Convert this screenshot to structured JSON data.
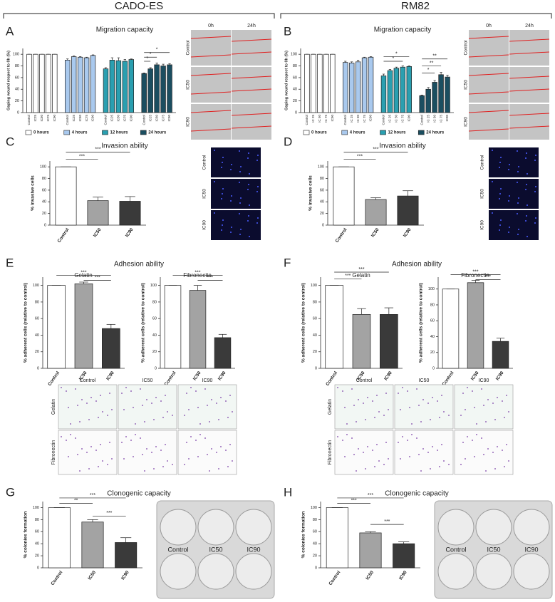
{
  "figure": {
    "groups": [
      "CADO-ES",
      "RM82"
    ],
    "panels": [
      "A",
      "B",
      "C",
      "D",
      "E",
      "F",
      "G",
      "H"
    ],
    "adhesion_title": "Adhesion ability",
    "wound": {
      "times": [
        "0h",
        "24h"
      ],
      "rows": [
        "Control",
        "IC50",
        "IC90"
      ]
    },
    "invasion_rows": [
      "Control",
      "IC50",
      "IC90"
    ],
    "adhesion": {
      "cols": [
        "Control",
        "IC50",
        "IC90"
      ],
      "rows": [
        "Gelatin",
        "Fibronectin"
      ]
    },
    "plate_labels": [
      "Control",
      "IC50",
      "IC90"
    ]
  },
  "chart_data": [
    {
      "type": "grouped_bar",
      "title": "Migration capacity",
      "ylabel": "Gaping wound respect to 0h (%)",
      "categories": [
        "Control",
        "IC25",
        "IC50",
        "IC75",
        "IC90"
      ],
      "series": [
        {
          "name": "0 hours",
          "color": "#ffffff",
          "values": [
            100,
            100,
            100,
            100,
            100
          ],
          "errors": [
            0,
            0,
            0,
            0,
            0
          ]
        },
        {
          "name": "4 hours",
          "color": "#a9c9ee",
          "values": [
            90,
            96,
            95,
            94,
            98
          ],
          "errors": [
            2,
            1,
            1,
            1,
            1
          ]
        },
        {
          "name": "12 hours",
          "color": "#2a9fb0",
          "values": [
            75,
            90,
            89,
            88,
            91
          ],
          "errors": [
            2,
            4,
            5,
            3,
            1
          ]
        },
        {
          "name": "24 hours",
          "color": "#1b4e60",
          "values": [
            67,
            75,
            82,
            80,
            82
          ],
          "errors": [
            1,
            2,
            3,
            3,
            2
          ]
        }
      ],
      "ylim": [
        0,
        110
      ],
      "yticks": [
        0,
        20,
        40,
        60,
        80,
        100
      ],
      "annotations": [
        "*",
        "*",
        "*"
      ]
    },
    {
      "type": "grouped_bar",
      "title": "Migration capacity",
      "ylabel": "Gaping wound respect to 0h (%)",
      "categories": [
        "Control",
        "IC 25",
        "IC 50",
        "IC 75",
        "IC90"
      ],
      "series": [
        {
          "name": "0 hours",
          "color": "#ffffff",
          "values": [
            100,
            100,
            100,
            100,
            100
          ],
          "errors": [
            0,
            0,
            0,
            0,
            0
          ]
        },
        {
          "name": "4 hours",
          "color": "#a9c9ee",
          "values": [
            86,
            85,
            87,
            94,
            95
          ],
          "errors": [
            2,
            2,
            3,
            1,
            1
          ]
        },
        {
          "name": "12 hours",
          "color": "#2a9fb0",
          "values": [
            63,
            72,
            76,
            78,
            79
          ],
          "errors": [
            3,
            2,
            2,
            2,
            1
          ]
        },
        {
          "name": "24 hours",
          "color": "#1b4e60",
          "values": [
            29,
            40,
            52,
            65,
            61
          ],
          "errors": [
            1,
            3,
            3,
            4,
            3
          ]
        }
      ],
      "ylim": [
        0,
        110
      ],
      "yticks": [
        0,
        20,
        40,
        60,
        80,
        100
      ],
      "annotations": [
        "*",
        "*",
        "**",
        "**",
        "*"
      ]
    },
    {
      "type": "bar",
      "title": "Invasion ability",
      "ylabel": "% invasive cells",
      "categories": [
        "Control",
        "IC50",
        "IC90"
      ],
      "values": [
        100,
        42,
        41
      ],
      "errors": [
        0,
        6,
        8
      ],
      "colors": [
        "#ffffff",
        "#a3a3a3",
        "#3a3a3a"
      ],
      "ylim": [
        0,
        110
      ],
      "yticks": [
        0,
        20,
        40,
        60,
        80,
        100
      ],
      "annotations": [
        "***",
        "***"
      ]
    },
    {
      "type": "bar",
      "title": "Invasion ability",
      "ylabel": "% invasive cells",
      "categories": [
        "Control",
        "IC50",
        "IC90"
      ],
      "values": [
        100,
        44,
        50
      ],
      "errors": [
        0,
        3,
        9
      ],
      "colors": [
        "#ffffff",
        "#a3a3a3",
        "#3a3a3a"
      ],
      "ylim": [
        0,
        110
      ],
      "yticks": [
        0,
        20,
        40,
        60,
        80,
        100
      ],
      "annotations": [
        "***",
        "***"
      ]
    },
    {
      "type": "bar",
      "title": "Gelatin",
      "ylabel": "% adherent cells (relative to control)",
      "categories": [
        "Control",
        "IC50",
        "IC90"
      ],
      "values": [
        100,
        102,
        48
      ],
      "errors": [
        0,
        2,
        5
      ],
      "colors": [
        "#ffffff",
        "#a3a3a3",
        "#3a3a3a"
      ],
      "ylim": [
        0,
        110
      ],
      "yticks": [
        0,
        20,
        40,
        60,
        80,
        100
      ],
      "annotations": [
        "***",
        "***"
      ]
    },
    {
      "type": "bar",
      "title": "Fibronectin",
      "ylabel": "% adherent cells (relative to control)",
      "categories": [
        "Control",
        "IC50",
        "IC90"
      ],
      "values": [
        100,
        94,
        37
      ],
      "errors": [
        0,
        6,
        4
      ],
      "colors": [
        "#ffffff",
        "#a3a3a3",
        "#3a3a3a"
      ],
      "ylim": [
        0,
        110
      ],
      "yticks": [
        0,
        20,
        40,
        60,
        80,
        100
      ],
      "annotations": [
        "***",
        "***"
      ]
    },
    {
      "type": "bar",
      "title": "Gelatin",
      "ylabel": "% adherent cells (relative to control)",
      "categories": [
        "Control",
        "IC50",
        "IC90"
      ],
      "values": [
        100,
        65,
        65
      ],
      "errors": [
        0,
        7,
        8
      ],
      "colors": [
        "#ffffff",
        "#a3a3a3",
        "#3a3a3a"
      ],
      "ylim": [
        0,
        110
      ],
      "yticks": [
        0,
        20,
        40,
        60,
        80,
        100
      ],
      "annotations": [
        "***",
        "***"
      ]
    },
    {
      "type": "bar",
      "title": "Fibronectin",
      "ylabel": "% adherent cells (relative to control)",
      "categories": [
        "Control",
        "IC50",
        "IC90"
      ],
      "values": [
        100,
        108,
        34
      ],
      "errors": [
        0,
        3,
        4
      ],
      "colors": [
        "#ffffff",
        "#a3a3a3",
        "#3a3a3a"
      ],
      "ylim": [
        0,
        115
      ],
      "yticks": [
        0,
        20,
        40,
        60,
        80,
        100
      ],
      "annotations": [
        "***",
        "***"
      ]
    },
    {
      "type": "bar",
      "title": "Clonogenic capacity",
      "ylabel": "% colonies formation",
      "categories": [
        "Control",
        "IC50",
        "IC90"
      ],
      "values": [
        100,
        76,
        42
      ],
      "errors": [
        0,
        4,
        8
      ],
      "colors": [
        "#ffffff",
        "#a3a3a3",
        "#3a3a3a"
      ],
      "ylim": [
        0,
        110
      ],
      "yticks": [
        0,
        20,
        40,
        60,
        80,
        100
      ],
      "annotations": [
        "**",
        "***",
        "***"
      ]
    },
    {
      "type": "bar",
      "title": "Clonogenic capacity",
      "ylabel": "% colonies formation",
      "categories": [
        "Control",
        "IC50",
        "IC90"
      ],
      "values": [
        100,
        58,
        40
      ],
      "errors": [
        0,
        2,
        3
      ],
      "colors": [
        "#ffffff",
        "#a3a3a3",
        "#3a3a3a"
      ],
      "ylim": [
        0,
        110
      ],
      "yticks": [
        0,
        20,
        40,
        60,
        80,
        100
      ],
      "annotations": [
        "***",
        "***",
        "***"
      ]
    }
  ]
}
